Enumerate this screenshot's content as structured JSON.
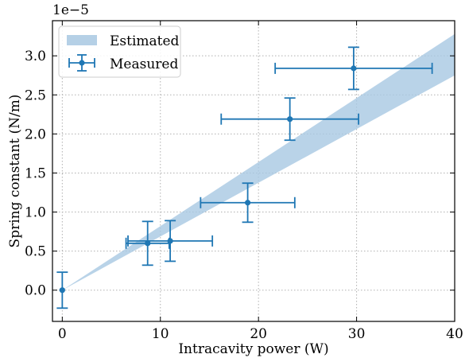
{
  "chart_data": {
    "type": "scatter",
    "xlabel": "Intracavity power (W)",
    "ylabel": "Spring constant (N/m)",
    "y_multiplier": "1e−5",
    "xlim": [
      -1,
      40
    ],
    "ylim": [
      -0.4,
      3.45
    ],
    "x_ticks": [
      0,
      10,
      20,
      30,
      40
    ],
    "y_ticks": [
      0.0,
      0.5,
      1.0,
      1.5,
      2.0,
      2.5,
      3.0
    ],
    "y_tick_labels": [
      "0.0",
      "0.5",
      "1.0",
      "1.5",
      "2.0",
      "2.5",
      "3.0"
    ],
    "grid": true,
    "legend_position": "top-left",
    "colors": {
      "series": "#1f77b4",
      "band": "#a8c8e2"
    },
    "series": [
      {
        "name": "Estimated",
        "kind": "band",
        "x": [
          0,
          40
        ],
        "lower": [
          0,
          2.75
        ],
        "upper": [
          0,
          3.28
        ]
      },
      {
        "name": "Measured",
        "kind": "errorbar",
        "points": [
          {
            "x": 0.0,
            "y": 0.0,
            "xerr": 0.0,
            "yerr": 0.23
          },
          {
            "x": 8.7,
            "y": 0.6,
            "xerr": 2.2,
            "yerr": 0.28
          },
          {
            "x": 11.0,
            "y": 0.63,
            "xerr": 4.3,
            "yerr": 0.26
          },
          {
            "x": 18.9,
            "y": 1.12,
            "xerr": 4.8,
            "yerr": 0.25
          },
          {
            "x": 23.2,
            "y": 2.19,
            "xerr": 7.0,
            "yerr": 0.27
          },
          {
            "x": 29.7,
            "y": 2.84,
            "xerr": 8.0,
            "yerr": 0.27
          }
        ]
      }
    ]
  }
}
